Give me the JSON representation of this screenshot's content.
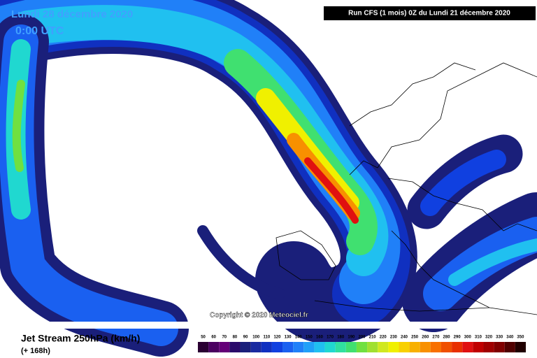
{
  "header": {
    "date": "Lundi 28 décembre 2020",
    "time": "0:00 UTC",
    "run": "Run CFS (1 mois) 0Z du Lundi 21 décembre 2020"
  },
  "copyright": "Copyright © 2020 Meteociel.fr",
  "footer": {
    "title": "Jet Stream 250hPa (km/h)",
    "lead": "(+ 168h)"
  },
  "legend": {
    "levels": [
      50,
      60,
      70,
      80,
      90,
      100,
      110,
      120,
      130,
      140,
      150,
      160,
      170,
      180,
      190,
      200,
      210,
      220,
      230,
      240,
      250,
      260,
      270,
      280,
      290,
      300,
      310,
      320,
      330,
      340,
      350
    ],
    "colors": [
      "#2a0033",
      "#4a0060",
      "#640078",
      "#2a0a6a",
      "#1a1f7a",
      "#1a2aa0",
      "#1030c0",
      "#1040e0",
      "#1a60f0",
      "#2080f8",
      "#20a0f8",
      "#20c0f0",
      "#20d8d0",
      "#30e0a0",
      "#40e070",
      "#70e040",
      "#a0e030",
      "#d0e820",
      "#f0f000",
      "#f8d000",
      "#f8b000",
      "#f89000",
      "#f87000",
      "#f05000",
      "#e83000",
      "#e01010",
      "#c00000",
      "#a00000",
      "#800000",
      "#500000",
      "#200000"
    ]
  }
}
